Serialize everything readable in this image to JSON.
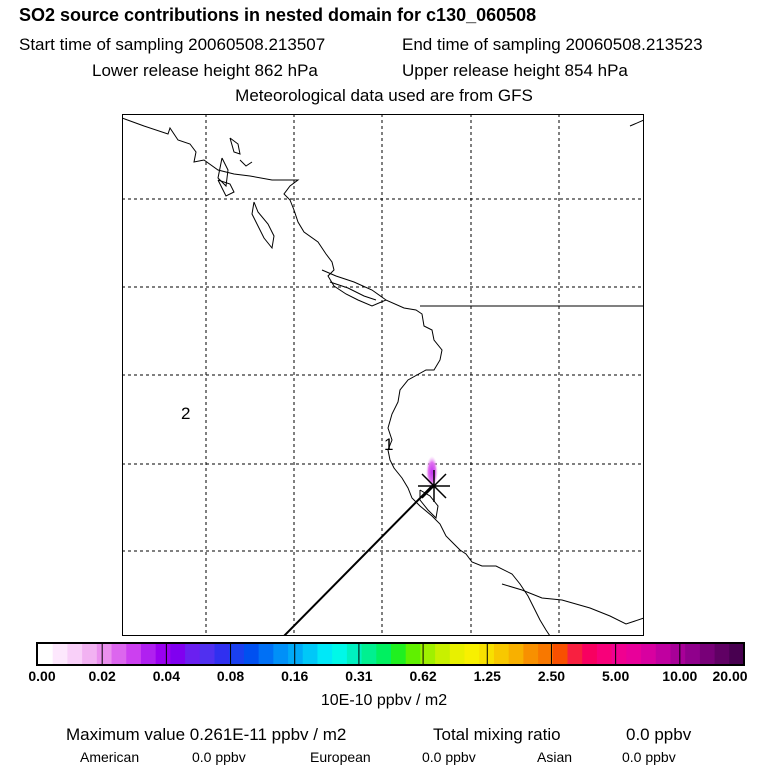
{
  "title": "SO2 source contributions in nested domain for c130_060508",
  "sampling": {
    "start": "Start time of sampling 20060508.213507",
    "end": "End time of sampling 20060508.213523"
  },
  "release": {
    "lower": "Lower release height  862 hPa",
    "upper": "Upper release height  854 hPa"
  },
  "met_note": "Meteorological data used are from GFS",
  "map": {
    "region_labels": [
      "1",
      "2"
    ]
  },
  "colorbar": {
    "colors": [
      "#ffffff",
      "#fde8fd",
      "#f9d0f9",
      "#f2b2f2",
      "#ea90ee",
      "#dc66ee",
      "#cc40f0",
      "#b020f0",
      "#9a00f0",
      "#8000f0",
      "#6a20f0",
      "#5030f0",
      "#3030f0",
      "#1a40f0",
      "#0050f0",
      "#0070f5",
      "#0090f8",
      "#00aaf8",
      "#00c8f8",
      "#00e8f8",
      "#00f8e8",
      "#00f0c0",
      "#00f090",
      "#00f060",
      "#20f020",
      "#60f000",
      "#a0f000",
      "#c8f000",
      "#e8f000",
      "#f8f000",
      "#f8e000",
      "#f8c800",
      "#f8b000",
      "#f89000",
      "#f87800",
      "#f85000",
      "#f82040",
      "#f80060",
      "#f8007a",
      "#f00090",
      "#e8009a",
      "#d800a0",
      "#c000a0",
      "#a80098",
      "#90008c",
      "#780078",
      "#600064",
      "#480050"
    ],
    "ticks": [
      "0.00",
      "0.02",
      "0.04",
      "0.08",
      "0.16",
      "0.31",
      "0.62",
      "1.25",
      "2.50",
      "5.00",
      "10.00",
      "20.00"
    ],
    "units": "10E-10 ppbv / m2"
  },
  "summary": {
    "max_value": "Maximum value  0.261E-11 ppbv / m2",
    "total_label": "Total mixing ratio",
    "total_value": "0.0 ppbv",
    "regions": [
      {
        "name": "American",
        "value": "0.0 ppbv"
      },
      {
        "name": "European",
        "value": "0.0 ppbv"
      },
      {
        "name": "Asian",
        "value": "0.0 ppbv"
      }
    ]
  }
}
